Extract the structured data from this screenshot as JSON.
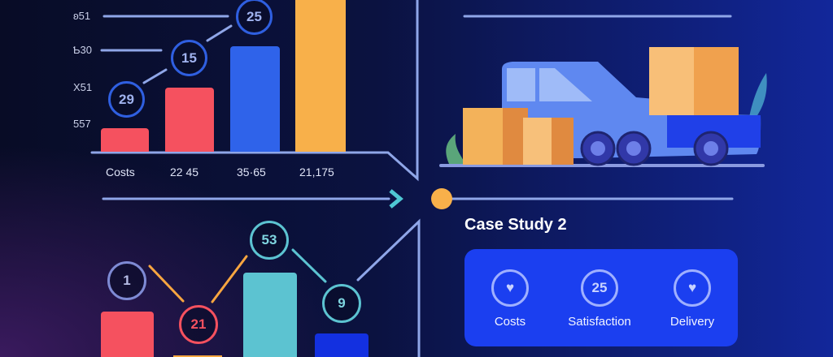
{
  "top_chart": {
    "y_ticks": [
      "ʚ51",
      "Ƅ30",
      "X51",
      "557"
    ],
    "x_labels": [
      "Costs",
      "22 45",
      "35·65",
      "21,175"
    ],
    "markers": [
      "29",
      "15",
      "25"
    ],
    "colors": {
      "red": "#f5515f",
      "blue": "#2f63ea",
      "orange": "#f8b04a",
      "marker": "#2f5fe0"
    }
  },
  "bottom_chart": {
    "markers": [
      "1",
      "21",
      "53",
      "9"
    ],
    "colors": {
      "red": "#f5515f",
      "teal": "#5cc3d1",
      "blue": "#1330e0",
      "orange": "#f8a640",
      "purple": "#7e8ad4"
    }
  },
  "case_study": {
    "title": "Case Study 2",
    "metrics": [
      {
        "icon": "heart-check-icon",
        "label": "Costs"
      },
      {
        "icon": "number-icon",
        "value": "25",
        "label": "Satisfaction"
      },
      {
        "icon": "heart-badge-icon",
        "label": "Delivery"
      }
    ],
    "panel_color": "#1b3ff0"
  }
}
